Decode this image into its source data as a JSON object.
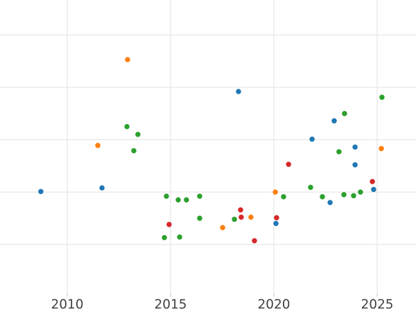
{
  "styles": {
    "background_color": "#ffffff",
    "gridline_color": "#e6e6e6",
    "tick_mark_color": "#cccccc",
    "tick_label_color": "#414141"
  },
  "chart_data": {
    "type": "scatter",
    "title": "",
    "xlabel": "",
    "ylabel": "",
    "grid": true,
    "legend": "none",
    "x_tick_labels": [
      "2010",
      "2015",
      "2020",
      "2025"
    ],
    "x_tick_years": [
      2010,
      2015,
      2020,
      2025
    ],
    "xlim": [
      2006.74,
      2026.88
    ],
    "ylim": [
      0.07,
      5.67
    ],
    "y_gridline_values": [
      1,
      2,
      3,
      4,
      5
    ],
    "marker_diameter_px": 7.5,
    "series": [
      {
        "name": "series-blue",
        "color": "#1f77b4",
        "points": [
          [
            2008.72,
            2.01
          ],
          [
            2011.68,
            2.08
          ],
          [
            2018.29,
            3.92
          ],
          [
            2020.1,
            1.4
          ],
          [
            2021.85,
            3.01
          ],
          [
            2022.72,
            1.8
          ],
          [
            2022.92,
            3.36
          ],
          [
            2023.93,
            2.86
          ],
          [
            2023.93,
            2.52
          ],
          [
            2024.83,
            2.05
          ]
        ]
      },
      {
        "name": "series-orange",
        "color": "#ff7f0e",
        "points": [
          [
            2011.48,
            2.89
          ],
          [
            2012.92,
            4.53
          ],
          [
            2017.52,
            1.32
          ],
          [
            2018.89,
            1.52
          ],
          [
            2020.07,
            2.0
          ],
          [
            2025.2,
            2.83
          ]
        ]
      },
      {
        "name": "series-green",
        "color": "#2ca02c",
        "points": [
          [
            2012.89,
            3.25
          ],
          [
            2013.22,
            2.79
          ],
          [
            2013.42,
            3.1
          ],
          [
            2014.7,
            1.13
          ],
          [
            2014.8,
            1.92
          ],
          [
            2015.37,
            1.85
          ],
          [
            2015.44,
            1.14
          ],
          [
            2015.77,
            1.85
          ],
          [
            2016.41,
            1.92
          ],
          [
            2016.41,
            1.5
          ],
          [
            2018.09,
            1.48
          ],
          [
            2020.47,
            1.91
          ],
          [
            2021.78,
            2.09
          ],
          [
            2022.35,
            1.91
          ],
          [
            2023.15,
            2.77
          ],
          [
            2023.39,
            1.95
          ],
          [
            2023.42,
            3.5
          ],
          [
            2023.86,
            1.93
          ],
          [
            2024.19,
            2.0
          ],
          [
            2025.23,
            3.81
          ]
        ]
      },
      {
        "name": "series-red",
        "color": "#d62728",
        "points": [
          [
            2014.93,
            1.38
          ],
          [
            2018.39,
            1.66
          ],
          [
            2018.42,
            1.52
          ],
          [
            2019.06,
            1.07
          ],
          [
            2020.13,
            1.51
          ],
          [
            2020.71,
            2.53
          ],
          [
            2024.77,
            2.2
          ]
        ]
      }
    ]
  }
}
